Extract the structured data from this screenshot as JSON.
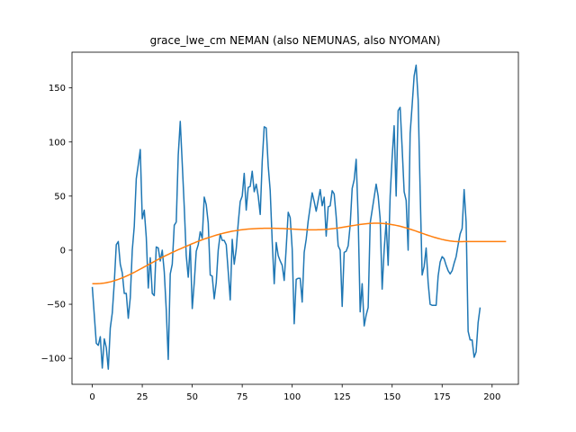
{
  "chart_data": {
    "type": "line",
    "title": "grace_lwe_cm NEMAN (also NEMUNAS, also NYOMAN)",
    "xlabel": "",
    "ylabel": "",
    "xlim": [
      -10.15,
      213.15
    ],
    "ylim": [
      -124,
      183
    ],
    "x_ticks": [
      0,
      25,
      50,
      75,
      100,
      125,
      150,
      175,
      200
    ],
    "y_ticks": [
      -100,
      -50,
      0,
      50,
      100,
      150
    ],
    "grid": false,
    "legend": "none",
    "series": [
      {
        "color": "#1f77b4",
        "values": [
          -34,
          -60,
          -86,
          -88,
          -80,
          -109,
          -82,
          -90,
          -110,
          -72,
          -58,
          -30,
          5,
          8,
          -13,
          -21,
          -40,
          -40,
          -63,
          -44,
          0,
          22,
          66,
          79,
          93,
          29,
          37,
          12,
          -35,
          -7,
          -40,
          -42,
          3,
          2,
          -10,
          0,
          -20,
          -55,
          -101,
          -22,
          -13,
          23,
          26,
          88,
          119,
          80,
          40,
          -5,
          -25,
          5,
          -54,
          -30,
          -1,
          5,
          17,
          11,
          49,
          42,
          25,
          -23,
          -24,
          -45,
          -30,
          0,
          15,
          9,
          9,
          5,
          -20,
          -46,
          10,
          -13,
          1,
          25,
          45,
          50,
          71,
          37,
          58,
          59,
          73,
          54,
          61,
          50,
          33,
          82,
          114,
          113,
          78,
          55,
          8,
          -31,
          7,
          -5,
          -10,
          -14,
          -28,
          2,
          35,
          30,
          1,
          -68,
          -27,
          -26,
          -26,
          -48,
          -2,
          10,
          27,
          40,
          53,
          45,
          36,
          46,
          56,
          41,
          49,
          13,
          40,
          41,
          55,
          52,
          31,
          4,
          0,
          -52,
          -2,
          -1,
          4,
          23,
          57,
          65,
          84,
          30,
          -57,
          -31,
          -70,
          -60,
          -53,
          25,
          37,
          49,
          61,
          50,
          29,
          -36,
          0,
          26,
          -14,
          50,
          86,
          115,
          50,
          129,
          132,
          94,
          54,
          46,
          0,
          108,
          134,
          161,
          171,
          139,
          55,
          -23,
          -15,
          2,
          -30,
          -50,
          -51,
          -51,
          -51,
          -24,
          -11,
          -6,
          -8,
          -14,
          -19,
          -22,
          -19,
          -12,
          -6,
          5,
          15,
          20,
          56,
          26,
          -75,
          -83,
          -83,
          -99,
          -94,
          -67,
          -53
        ]
      },
      {
        "color": "#ff7f0e",
        "values": [
          -31,
          -31,
          -31,
          -30.9,
          -30.8,
          -30.6,
          -30.4,
          -30.1,
          -29.7,
          -29.3,
          -28.8,
          -28.2,
          -27.6,
          -27,
          -26.3,
          -25.6,
          -24.8,
          -24,
          -23.2,
          -22.3,
          -21.4,
          -20.5,
          -19.5,
          -18.5,
          -17.5,
          -16.5,
          -15.5,
          -14.5,
          -13.5,
          -12.5,
          -11.5,
          -10.5,
          -9.5,
          -8.5,
          -7.6,
          -6.6,
          -5.7,
          -4.8,
          -3.9,
          -3,
          -2.1,
          -1.3,
          -0.4,
          0.4,
          1.2,
          2,
          2.8,
          3.6,
          4.4,
          5.2,
          6,
          6.7,
          7.5,
          8.2,
          8.9,
          9.6,
          10.3,
          10.9,
          11.5,
          12.1,
          12.7,
          13.3,
          13.9,
          14.4,
          14.9,
          15.4,
          15.9,
          16.3,
          16.7,
          17.1,
          17.5,
          17.8,
          18.1,
          18.4,
          18.7,
          18.9,
          19.1,
          19.3,
          19.5,
          19.6,
          19.7,
          19.8,
          19.9,
          20,
          20.1,
          20.1,
          20.2,
          20.2,
          20.2,
          20.2,
          20.2,
          20.2,
          20.1,
          20.1,
          20,
          20,
          19.9,
          19.8,
          19.7,
          19.6,
          19.5,
          19.4,
          19.3,
          19.2,
          19.1,
          19,
          18.9,
          18.9,
          18.8,
          18.8,
          18.8,
          18.8,
          18.8,
          18.9,
          18.9,
          19,
          19.1,
          19.3,
          19.4,
          19.6,
          19.8,
          20,
          20.3,
          20.5,
          20.8,
          21.1,
          21.4,
          21.7,
          22,
          22.3,
          22.6,
          22.9,
          23.2,
          23.5,
          23.8,
          24,
          24.2,
          24.4,
          24.6,
          24.7,
          24.8,
          24.9,
          24.9,
          24.9,
          24.8,
          24.7,
          24.6,
          24.4,
          24.2,
          23.9,
          23.6,
          23.3,
          22.9,
          22.5,
          22.1,
          21.6,
          21.1,
          20.6,
          20,
          19.4,
          18.8,
          18.2,
          17.6,
          16.9,
          16.3,
          15.6,
          15,
          14.3,
          13.7,
          13.1,
          12.5,
          11.9,
          11.4,
          10.9,
          10.4,
          9.9,
          9.5,
          9.1,
          8.8,
          8.5,
          8.3,
          8.1,
          8,
          7.9,
          7.9,
          7.9,
          8,
          8,
          8,
          8,
          8,
          8,
          8,
          8,
          8,
          8,
          8,
          8,
          8,
          8,
          8,
          8,
          8,
          8,
          8,
          8,
          8,
          8
        ]
      }
    ]
  }
}
